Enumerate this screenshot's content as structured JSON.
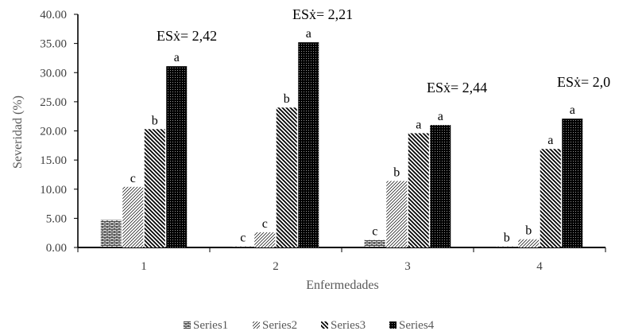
{
  "chart_data": {
    "type": "bar",
    "title": "",
    "xlabel": "Enfermedades",
    "ylabel": "Severidad (%)",
    "ylim": [
      0,
      40
    ],
    "yticks": [
      "0.00",
      "5.00",
      "10.00",
      "15.00",
      "20.00",
      "25.00",
      "30.00",
      "35.00",
      "40.00"
    ],
    "categories": [
      "1",
      "2",
      "3",
      "4"
    ],
    "grid": false,
    "legend_position": "bottom",
    "series": [
      {
        "name": "Series1",
        "pattern": "brick",
        "color": "#000000",
        "values": [
          4.7,
          0.2,
          1.3,
          0.2
        ],
        "labels": [
          "",
          "c",
          "c",
          "b"
        ]
      },
      {
        "name": "Series2",
        "pattern": "light-diagonal",
        "color": "#000000",
        "values": [
          10.4,
          2.6,
          11.4,
          1.4
        ],
        "labels": [
          "c",
          "c",
          "b",
          "b"
        ]
      },
      {
        "name": "Series3",
        "pattern": "wide-diagonal",
        "color": "#000000",
        "values": [
          20.3,
          24.0,
          19.6,
          16.9
        ],
        "labels": [
          "b",
          "b",
          "a",
          "a"
        ]
      },
      {
        "name": "Series4",
        "pattern": "dense-dots",
        "color": "#000000",
        "values": [
          31.1,
          35.2,
          21.0,
          22.1
        ],
        "labels": [
          "a",
          "a",
          "a",
          "a"
        ]
      }
    ],
    "annotations": [
      "ESẋ= 2,42",
      "ESẋ= 2,21",
      "ESẋ= 2,44",
      "ESẋ= 2,0"
    ]
  }
}
